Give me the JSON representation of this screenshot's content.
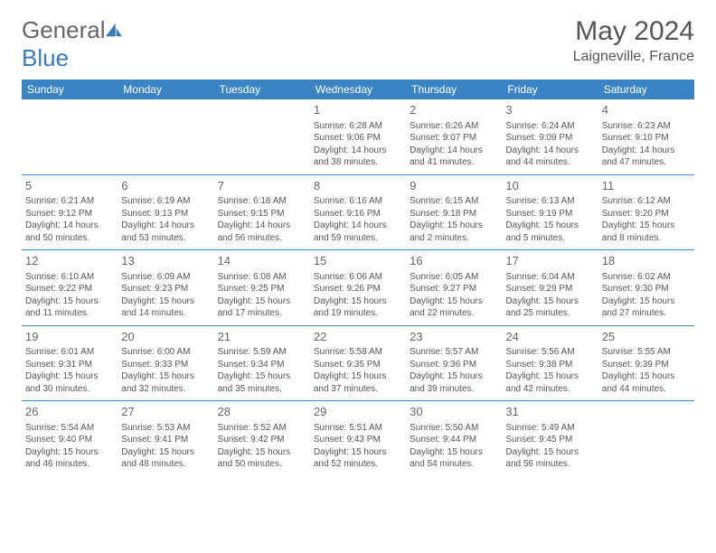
{
  "brand": {
    "part1": "General",
    "part2": "Blue"
  },
  "colors": {
    "brand_blue": "#3a84c4",
    "text": "#555555",
    "header_bg": "#3a84c4",
    "header_text": "#ffffff",
    "border": "#3a84c4"
  },
  "title": "May 2024",
  "location": "Laigneville, France",
  "day_headers": [
    "Sunday",
    "Monday",
    "Tuesday",
    "Wednesday",
    "Thursday",
    "Friday",
    "Saturday"
  ],
  "weeks": [
    [
      null,
      null,
      null,
      {
        "n": "1",
        "sr": "Sunrise: 6:28 AM",
        "ss": "Sunset: 9:06 PM",
        "dl1": "Daylight: 14 hours",
        "dl2": "and 38 minutes."
      },
      {
        "n": "2",
        "sr": "Sunrise: 6:26 AM",
        "ss": "Sunset: 9:07 PM",
        "dl1": "Daylight: 14 hours",
        "dl2": "and 41 minutes."
      },
      {
        "n": "3",
        "sr": "Sunrise: 6:24 AM",
        "ss": "Sunset: 9:09 PM",
        "dl1": "Daylight: 14 hours",
        "dl2": "and 44 minutes."
      },
      {
        "n": "4",
        "sr": "Sunrise: 6:23 AM",
        "ss": "Sunset: 9:10 PM",
        "dl1": "Daylight: 14 hours",
        "dl2": "and 47 minutes."
      }
    ],
    [
      {
        "n": "5",
        "sr": "Sunrise: 6:21 AM",
        "ss": "Sunset: 9:12 PM",
        "dl1": "Daylight: 14 hours",
        "dl2": "and 50 minutes."
      },
      {
        "n": "6",
        "sr": "Sunrise: 6:19 AM",
        "ss": "Sunset: 9:13 PM",
        "dl1": "Daylight: 14 hours",
        "dl2": "and 53 minutes."
      },
      {
        "n": "7",
        "sr": "Sunrise: 6:18 AM",
        "ss": "Sunset: 9:15 PM",
        "dl1": "Daylight: 14 hours",
        "dl2": "and 56 minutes."
      },
      {
        "n": "8",
        "sr": "Sunrise: 6:16 AM",
        "ss": "Sunset: 9:16 PM",
        "dl1": "Daylight: 14 hours",
        "dl2": "and 59 minutes."
      },
      {
        "n": "9",
        "sr": "Sunrise: 6:15 AM",
        "ss": "Sunset: 9:18 PM",
        "dl1": "Daylight: 15 hours",
        "dl2": "and 2 minutes."
      },
      {
        "n": "10",
        "sr": "Sunrise: 6:13 AM",
        "ss": "Sunset: 9:19 PM",
        "dl1": "Daylight: 15 hours",
        "dl2": "and 5 minutes."
      },
      {
        "n": "11",
        "sr": "Sunrise: 6:12 AM",
        "ss": "Sunset: 9:20 PM",
        "dl1": "Daylight: 15 hours",
        "dl2": "and 8 minutes."
      }
    ],
    [
      {
        "n": "12",
        "sr": "Sunrise: 6:10 AM",
        "ss": "Sunset: 9:22 PM",
        "dl1": "Daylight: 15 hours",
        "dl2": "and 11 minutes."
      },
      {
        "n": "13",
        "sr": "Sunrise: 6:09 AM",
        "ss": "Sunset: 9:23 PM",
        "dl1": "Daylight: 15 hours",
        "dl2": "and 14 minutes."
      },
      {
        "n": "14",
        "sr": "Sunrise: 6:08 AM",
        "ss": "Sunset: 9:25 PM",
        "dl1": "Daylight: 15 hours",
        "dl2": "and 17 minutes."
      },
      {
        "n": "15",
        "sr": "Sunrise: 6:06 AM",
        "ss": "Sunset: 9:26 PM",
        "dl1": "Daylight: 15 hours",
        "dl2": "and 19 minutes."
      },
      {
        "n": "16",
        "sr": "Sunrise: 6:05 AM",
        "ss": "Sunset: 9:27 PM",
        "dl1": "Daylight: 15 hours",
        "dl2": "and 22 minutes."
      },
      {
        "n": "17",
        "sr": "Sunrise: 6:04 AM",
        "ss": "Sunset: 9:29 PM",
        "dl1": "Daylight: 15 hours",
        "dl2": "and 25 minutes."
      },
      {
        "n": "18",
        "sr": "Sunrise: 6:02 AM",
        "ss": "Sunset: 9:30 PM",
        "dl1": "Daylight: 15 hours",
        "dl2": "and 27 minutes."
      }
    ],
    [
      {
        "n": "19",
        "sr": "Sunrise: 6:01 AM",
        "ss": "Sunset: 9:31 PM",
        "dl1": "Daylight: 15 hours",
        "dl2": "and 30 minutes."
      },
      {
        "n": "20",
        "sr": "Sunrise: 6:00 AM",
        "ss": "Sunset: 9:33 PM",
        "dl1": "Daylight: 15 hours",
        "dl2": "and 32 minutes."
      },
      {
        "n": "21",
        "sr": "Sunrise: 5:59 AM",
        "ss": "Sunset: 9:34 PM",
        "dl1": "Daylight: 15 hours",
        "dl2": "and 35 minutes."
      },
      {
        "n": "22",
        "sr": "Sunrise: 5:58 AM",
        "ss": "Sunset: 9:35 PM",
        "dl1": "Daylight: 15 hours",
        "dl2": "and 37 minutes."
      },
      {
        "n": "23",
        "sr": "Sunrise: 5:57 AM",
        "ss": "Sunset: 9:36 PM",
        "dl1": "Daylight: 15 hours",
        "dl2": "and 39 minutes."
      },
      {
        "n": "24",
        "sr": "Sunrise: 5:56 AM",
        "ss": "Sunset: 9:38 PM",
        "dl1": "Daylight: 15 hours",
        "dl2": "and 42 minutes."
      },
      {
        "n": "25",
        "sr": "Sunrise: 5:55 AM",
        "ss": "Sunset: 9:39 PM",
        "dl1": "Daylight: 15 hours",
        "dl2": "and 44 minutes."
      }
    ],
    [
      {
        "n": "26",
        "sr": "Sunrise: 5:54 AM",
        "ss": "Sunset: 9:40 PM",
        "dl1": "Daylight: 15 hours",
        "dl2": "and 46 minutes."
      },
      {
        "n": "27",
        "sr": "Sunrise: 5:53 AM",
        "ss": "Sunset: 9:41 PM",
        "dl1": "Daylight: 15 hours",
        "dl2": "and 48 minutes."
      },
      {
        "n": "28",
        "sr": "Sunrise: 5:52 AM",
        "ss": "Sunset: 9:42 PM",
        "dl1": "Daylight: 15 hours",
        "dl2": "and 50 minutes."
      },
      {
        "n": "29",
        "sr": "Sunrise: 5:51 AM",
        "ss": "Sunset: 9:43 PM",
        "dl1": "Daylight: 15 hours",
        "dl2": "and 52 minutes."
      },
      {
        "n": "30",
        "sr": "Sunrise: 5:50 AM",
        "ss": "Sunset: 9:44 PM",
        "dl1": "Daylight: 15 hours",
        "dl2": "and 54 minutes."
      },
      {
        "n": "31",
        "sr": "Sunrise: 5:49 AM",
        "ss": "Sunset: 9:45 PM",
        "dl1": "Daylight: 15 hours",
        "dl2": "and 56 minutes."
      },
      null
    ]
  ]
}
